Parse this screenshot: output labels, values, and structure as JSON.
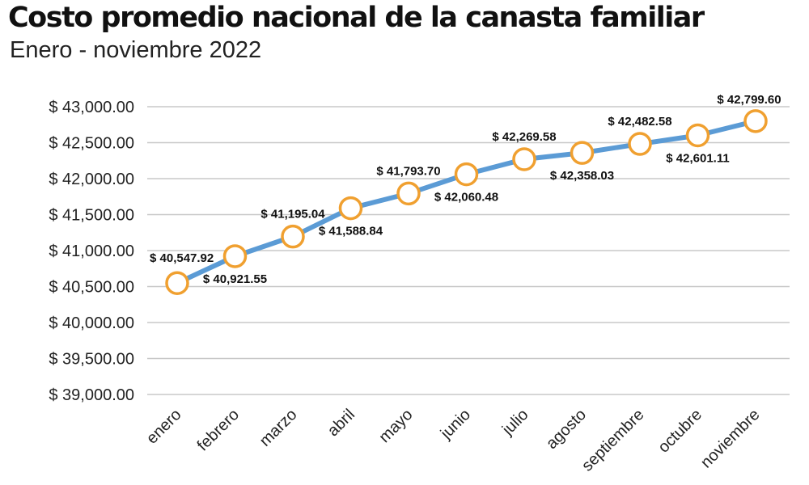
{
  "chart_data": {
    "type": "line",
    "title": "Costo  promedio nacional de la canasta familiar",
    "subtitle": "Enero - noviembre 2022",
    "categories": [
      "enero",
      "febrero",
      "marzo",
      "abril",
      "mayo",
      "junio",
      "julio",
      "agosto",
      "septiembre",
      "octubre",
      "noviembre"
    ],
    "values": [
      40547.92,
      40921.55,
      41195.04,
      41588.84,
      41793.7,
      42060.48,
      42269.58,
      42358.03,
      42482.58,
      42601.11,
      42799.6
    ],
    "data_labels": [
      "$ 40,547.92",
      "$ 40,921.55",
      "$ 41,195.04",
      "$ 41,588.84",
      "$ 41,793.70",
      "$ 42,060.48",
      "$ 42,269.58",
      "$ 42,358.03",
      "$ 42,482.58",
      "$ 42,601.11",
      "$ 42,799.60"
    ],
    "y_ticks": [
      39000,
      39500,
      40000,
      40500,
      41000,
      41500,
      42000,
      42500,
      43000
    ],
    "y_tick_labels": [
      "$ 39,000.00",
      "$ 39,500.00",
      "$ 40,000.00",
      "$ 40,500.00",
      "$ 41,000.00",
      "$ 41,500.00",
      "$ 42,000.00",
      "$ 42,500.00",
      "$ 43,000.00"
    ],
    "ylim": [
      39000,
      43000
    ],
    "grid": true,
    "legend": false,
    "colors": {
      "line": "#5b9bd5",
      "marker_edge": "#f0a030",
      "marker_fill": "#ffffff",
      "grid": "#c8c8c8"
    }
  }
}
